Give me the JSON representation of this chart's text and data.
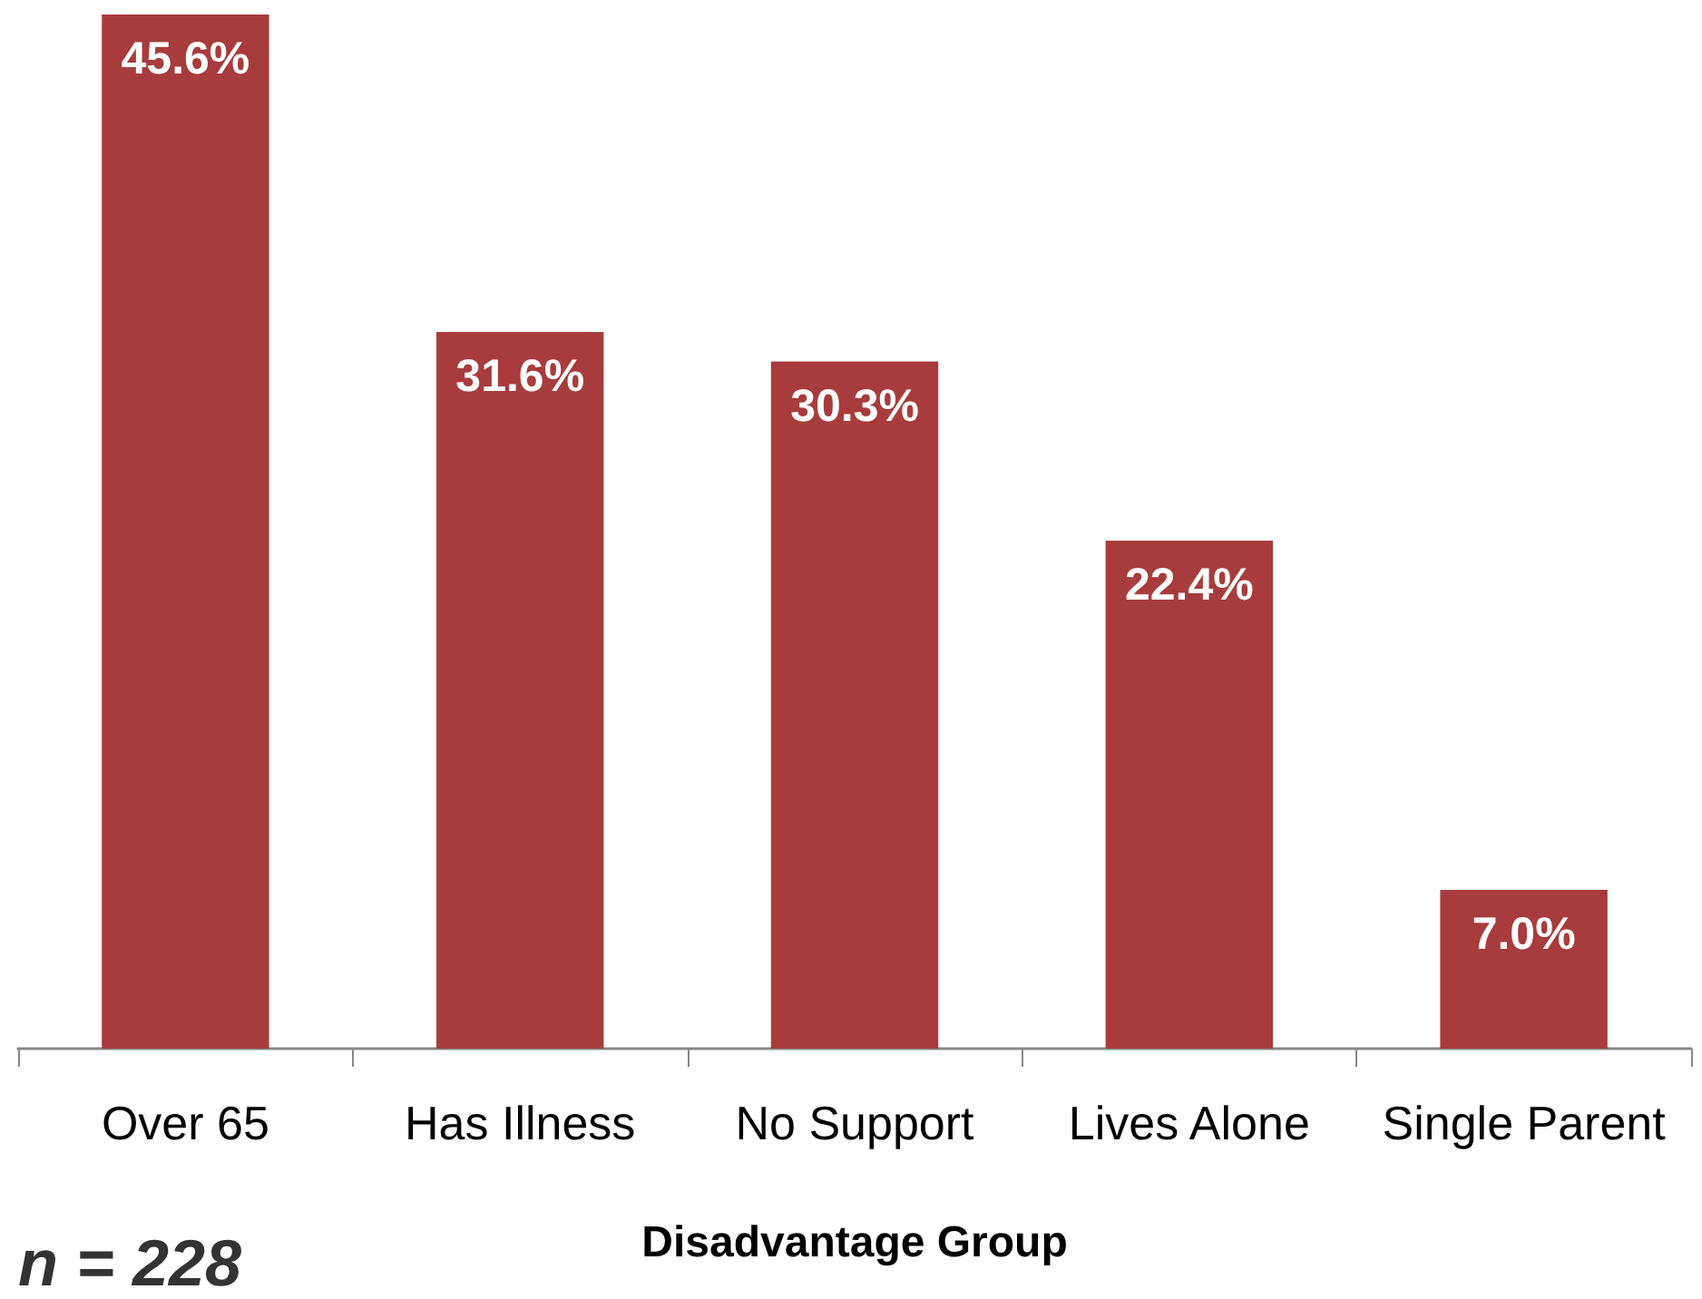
{
  "chart_data": {
    "type": "bar",
    "xlabel": "Disadvantage Group",
    "categories": [
      "Over 65",
      "Has Illness",
      "No Support",
      "Lives Alone",
      "Single Parent"
    ],
    "values": [
      45.6,
      31.6,
      30.3,
      22.4,
      7.0
    ],
    "value_labels": [
      "45.6%",
      "31.6%",
      "30.3%",
      "22.4%",
      "7.0%"
    ],
    "color": "#a83c3c",
    "annotations": [
      "n = 228"
    ]
  }
}
